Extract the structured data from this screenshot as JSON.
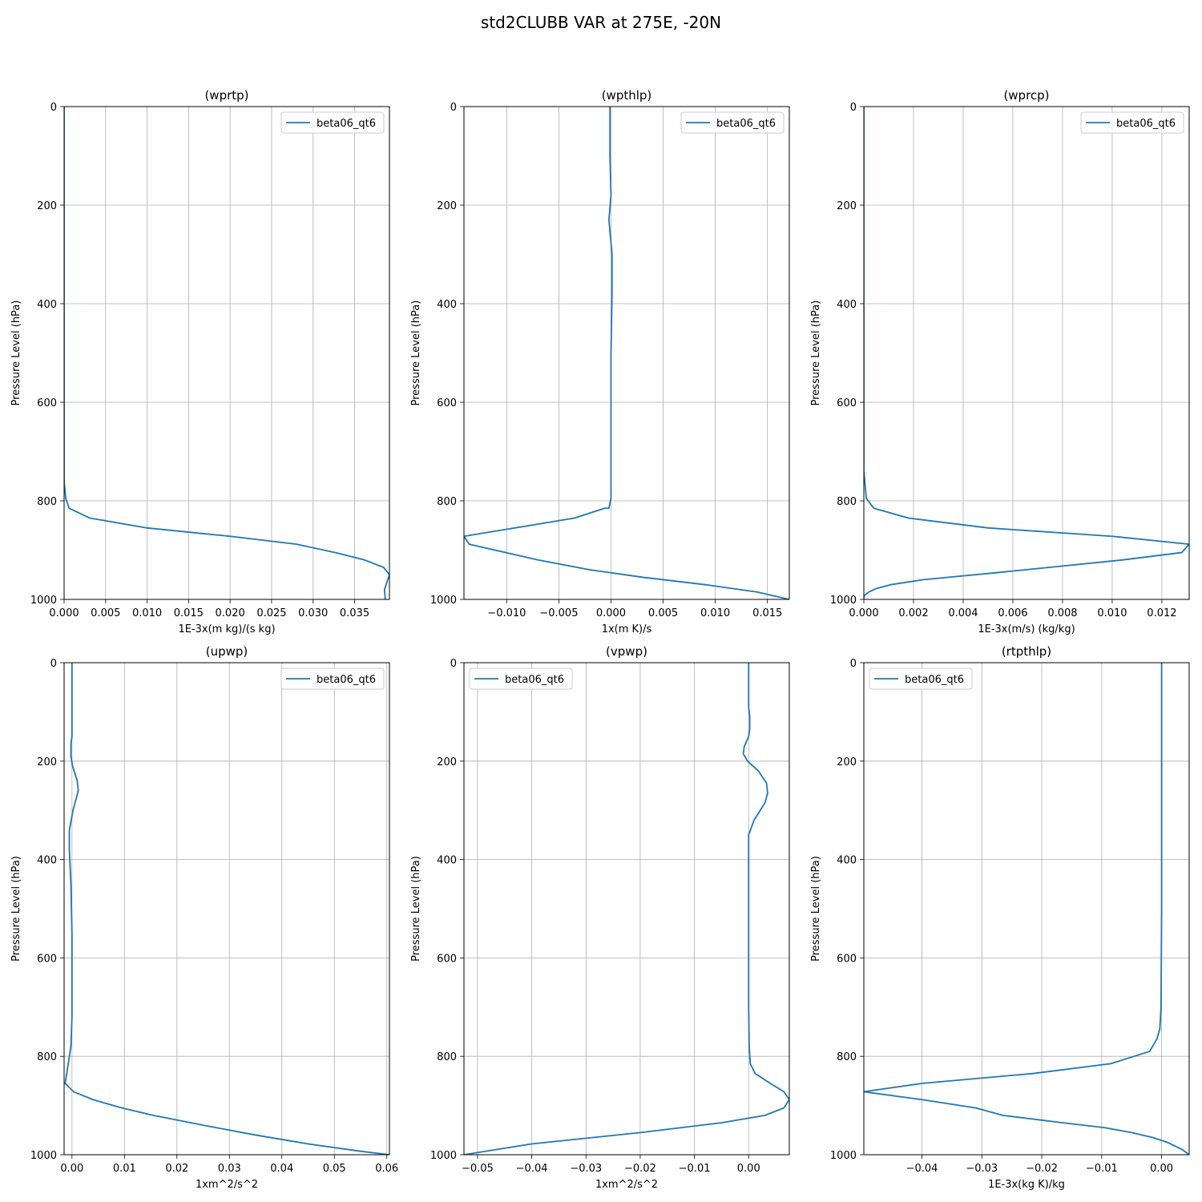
{
  "suptitle": "std2CLUBB VAR at 275E, -20N",
  "chart_data": [
    {
      "type": "line",
      "title": "(wprtp)",
      "xlabel": "1E-3x(m kg)/(s kg)",
      "ylabel": "Pressure Level (hPa)",
      "xlim": [
        0,
        0.0392
      ],
      "ylim": [
        1000,
        0
      ],
      "xticks": [
        0,
        0.005,
        0.01,
        0.015,
        0.02,
        0.025,
        0.03,
        0.035
      ],
      "xtick_labels": [
        "0.000",
        "0.005",
        "0.010",
        "0.015",
        "0.020",
        "0.025",
        "0.030",
        "0.035"
      ],
      "yticks": [
        0,
        200,
        400,
        600,
        800,
        1000
      ],
      "ytick_labels": [
        "0",
        "200",
        "400",
        "600",
        "800",
        "1000"
      ],
      "grid": true,
      "legend_position": "top-right",
      "series": [
        {
          "name": "beta06_qt6",
          "color": "#1f77b4",
          "x": [
            0,
            0,
            0,
            0.0002,
            0.0006,
            0.0031,
            0.01,
            0.02,
            0.028,
            0.0327,
            0.0362,
            0.0385,
            0.0392,
            0.039,
            0.0386,
            0.0387
          ],
          "y": [
            0,
            700,
            760,
            795,
            815,
            835,
            855,
            872,
            888,
            905,
            920,
            935,
            950,
            960,
            980,
            1000
          ]
        }
      ]
    },
    {
      "type": "line",
      "title": "(wpthlp)",
      "xlabel": "1x(m K)/s",
      "ylabel": "Pressure Level (hPa)",
      "xlim": [
        -0.0141,
        0.0171
      ],
      "ylim": [
        1000,
        0
      ],
      "xticks": [
        -0.01,
        -0.005,
        0,
        0.005,
        0.01,
        0.015
      ],
      "xtick_labels": [
        "−0.010",
        "−0.005",
        "0.000",
        "0.005",
        "0.010",
        "0.015"
      ],
      "yticks": [
        0,
        200,
        400,
        600,
        800,
        1000
      ],
      "ytick_labels": [
        "0",
        "200",
        "400",
        "600",
        "800",
        "1000"
      ],
      "grid": true,
      "legend_position": "top-right",
      "series": [
        {
          "name": "beta06_qt6",
          "color": "#1f77b4",
          "x": [
            -0.0001,
            -0.0001,
            0,
            -0.0002,
            0.0001,
            0.0001,
            0,
            0,
            0,
            0,
            0,
            -0.0002,
            -0.0006,
            -0.0035,
            -0.0141,
            -0.0136,
            -0.007,
            -0.002,
            0.003,
            0.009,
            0.014,
            0.0171
          ],
          "y": [
            0,
            100,
            180,
            230,
            300,
            380,
            500,
            600,
            700,
            760,
            795,
            815,
            815,
            835,
            872,
            888,
            920,
            940,
            955,
            970,
            985,
            1000
          ]
        }
      ]
    },
    {
      "type": "line",
      "title": "(wprcp)",
      "xlabel": "1E-3x(m/s) (kg/kg)",
      "ylabel": "Pressure Level (hPa)",
      "xlim": [
        0,
        0.0131
      ],
      "ylim": [
        1000,
        0
      ],
      "xticks": [
        0,
        0.002,
        0.004,
        0.006,
        0.008,
        0.01,
        0.012
      ],
      "xtick_labels": [
        "0.000",
        "0.002",
        "0.004",
        "0.006",
        "0.008",
        "0.010",
        "0.012"
      ],
      "yticks": [
        0,
        200,
        400,
        600,
        800,
        1000
      ],
      "ytick_labels": [
        "0",
        "200",
        "400",
        "600",
        "800",
        "1000"
      ],
      "grid": true,
      "legend_position": "top-right",
      "series": [
        {
          "name": "beta06_qt6",
          "color": "#1f77b4",
          "x": [
            0,
            0,
            0.0001,
            0.0004,
            0.0018,
            0.005,
            0.01,
            0.0131,
            0.0128,
            0.0104,
            0.0055,
            0.0024,
            0.0011,
            0.0005,
            0.0002,
            0,
            0
          ],
          "y": [
            0,
            740,
            795,
            815,
            835,
            855,
            872,
            888,
            905,
            920,
            945,
            960,
            970,
            978,
            985,
            993,
            1000
          ]
        }
      ]
    },
    {
      "type": "line",
      "title": "(upwp)",
      "xlabel": "1xm^2/s^2",
      "ylabel": "Pressure Level (hPa)",
      "xlim": [
        -0.0015,
        0.0605
      ],
      "ylim": [
        1000,
        0
      ],
      "xticks": [
        0,
        0.01,
        0.02,
        0.03,
        0.04,
        0.05,
        0.06
      ],
      "xtick_labels": [
        "0.00",
        "0.01",
        "0.02",
        "0.03",
        "0.04",
        "0.05",
        "0.06"
      ],
      "yticks": [
        0,
        200,
        400,
        600,
        800,
        1000
      ],
      "ytick_labels": [
        "0",
        "200",
        "400",
        "600",
        "800",
        "1000"
      ],
      "grid": true,
      "legend_position": "top-right",
      "series": [
        {
          "name": "beta06_qt6",
          "color": "#1f77b4",
          "x": [
            0,
            0,
            -0.0002,
            -0.0002,
            0.0001,
            0.001,
            0.0012,
            0.0002,
            -0.0005,
            -0.0005,
            -0.0002,
            0,
            0,
            0,
            -0.0002,
            -0.001,
            -0.0013,
            0.0003,
            0.004,
            0.0095,
            0.0155,
            0.025,
            0.035,
            0.045,
            0.055,
            0.0605
          ],
          "y": [
            0,
            150,
            165,
            190,
            210,
            240,
            260,
            300,
            340,
            380,
            450,
            550,
            650,
            720,
            780,
            835,
            855,
            872,
            888,
            905,
            920,
            940,
            960,
            978,
            993,
            1000
          ]
        }
      ]
    },
    {
      "type": "line",
      "title": "(vpwp)",
      "xlabel": "1xm^2/s^2",
      "ylabel": "Pressure Level (hPa)",
      "xlim": [
        -0.0525,
        0.0075
      ],
      "ylim": [
        1000,
        0
      ],
      "xticks": [
        -0.05,
        -0.04,
        -0.03,
        -0.02,
        -0.01,
        0
      ],
      "xtick_labels": [
        "−0.05",
        "−0.04",
        "−0.03",
        "−0.02",
        "−0.01",
        "0.00"
      ],
      "yticks": [
        0,
        200,
        400,
        600,
        800,
        1000
      ],
      "ytick_labels": [
        "0",
        "200",
        "400",
        "600",
        "800",
        "1000"
      ],
      "grid": true,
      "legend_position": "top-left",
      "series": [
        {
          "name": "beta06_qt6",
          "color": "#1f77b4",
          "x": [
            0,
            0,
            0.0002,
            0.0002,
            0,
            -0.0008,
            -0.001,
            -0.0002,
            0.0018,
            0.0033,
            0.0035,
            0.003,
            0.001,
            0,
            0,
            0,
            0,
            0,
            0.0001,
            0.0003,
            0.0012,
            0.004,
            0.0065,
            0.0075,
            0.0065,
            0.003,
            -0.005,
            -0.02,
            -0.04,
            -0.0525
          ],
          "y": [
            0,
            90,
            110,
            135,
            150,
            170,
            185,
            200,
            220,
            245,
            265,
            285,
            320,
            350,
            400,
            500,
            600,
            700,
            780,
            815,
            835,
            855,
            872,
            888,
            905,
            920,
            935,
            955,
            978,
            1000
          ]
        }
      ]
    },
    {
      "type": "line",
      "title": "(rtpthlp)",
      "xlabel": "1E-3x(kg K)/kg",
      "ylabel": "Pressure Level (hPa)",
      "xlim": [
        -0.0497,
        0.0046
      ],
      "ylim": [
        1000,
        0
      ],
      "xticks": [
        -0.04,
        -0.03,
        -0.02,
        -0.01,
        0
      ],
      "xtick_labels": [
        "−0.04",
        "−0.03",
        "−0.02",
        "−0.01",
        "0.00"
      ],
      "yticks": [
        0,
        200,
        400,
        600,
        800,
        1000
      ],
      "ytick_labels": [
        "0",
        "200",
        "400",
        "600",
        "800",
        "1000"
      ],
      "grid": true,
      "legend_position": "top-left",
      "series": [
        {
          "name": "beta06_qt6",
          "color": "#1f77b4",
          "x": [
            0,
            0,
            -0.0001,
            -0.0003,
            -0.0008,
            -0.002,
            -0.0085,
            -0.0215,
            -0.04,
            -0.0497,
            -0.04,
            -0.031,
            -0.0265,
            -0.0165,
            -0.0095,
            -0.005,
            -0.0015,
            0.001,
            0.0035,
            0.0046
          ],
          "y": [
            0,
            500,
            700,
            745,
            765,
            790,
            815,
            835,
            855,
            872,
            888,
            905,
            920,
            935,
            945,
            955,
            965,
            975,
            990,
            1000
          ]
        }
      ]
    }
  ]
}
